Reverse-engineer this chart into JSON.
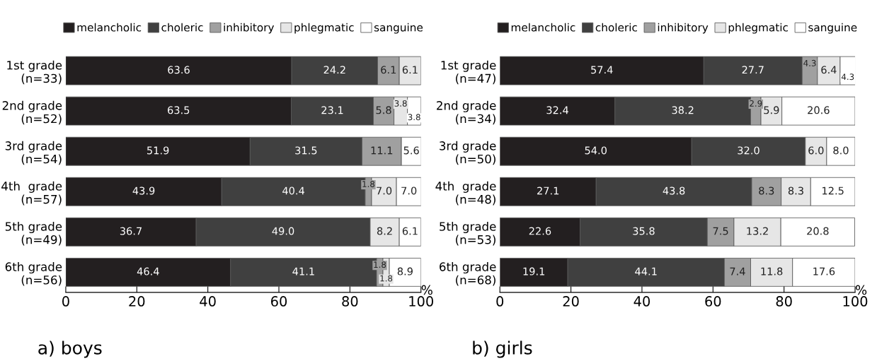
{
  "chart_data": [
    {
      "type": "bar",
      "title": "a) boys",
      "xlabel": "%",
      "orientation": "horizontal",
      "stacked": true,
      "legend": "top",
      "xlim": [
        0,
        100
      ],
      "xticks": [
        0,
        20,
        40,
        60,
        80,
        100
      ],
      "categories": [
        "1st grade\n(n=33)",
        "2nd grade\n(n=52)",
        "3rd grade\n(n=54)",
        "4th  grade\n(n=57)",
        "5th grade\n(n=49)",
        "6th grade\n(n=56)"
      ],
      "series": [
        {
          "name": "melancholic",
          "color": "#231f20",
          "values": [
            63.6,
            63.5,
            51.9,
            43.9,
            36.7,
            46.4
          ],
          "value_labels": [
            "63.6",
            "63.5",
            "51.9",
            "43.9",
            "36.7",
            "46.4"
          ]
        },
        {
          "name": "choleric",
          "color": "#404040",
          "values": [
            24.2,
            23.1,
            31.5,
            40.4,
            49.0,
            41.1
          ],
          "value_labels": [
            "24.2",
            "23.1",
            "31.5",
            "40.4",
            "49.0",
            "41.1"
          ]
        },
        {
          "name": "inhibitory",
          "color": "#a0a0a0",
          "values": [
            6.1,
            5.8,
            11.1,
            1.8,
            null,
            1.8
          ],
          "value_labels": [
            "6.1",
            "5.8",
            "11.1",
            "1.8",
            null,
            "1.8"
          ]
        },
        {
          "name": "phlegmatic",
          "color": "#e6e6e6",
          "values": [
            6.1,
            3.8,
            null,
            7.0,
            8.2,
            1.8
          ],
          "value_labels": [
            "6.1",
            "3.8",
            null,
            "7.0",
            "8.2",
            "1.8"
          ]
        },
        {
          "name": "sanguine",
          "color": "#ffffff",
          "values": [
            null,
            3.8,
            5.6,
            7.0,
            6.1,
            8.9
          ],
          "value_labels": [
            null,
            "3.8",
            "5.6",
            "7.0",
            "6.1",
            "8.9"
          ]
        }
      ]
    },
    {
      "type": "bar",
      "title": "b) girls",
      "xlabel": "%",
      "orientation": "horizontal",
      "stacked": true,
      "legend": "top",
      "xlim": [
        0,
        100
      ],
      "xticks": [
        0,
        20,
        40,
        60,
        80,
        100
      ],
      "categories": [
        "1st grade\n(n=47)",
        "2nd grade\n(n=34)",
        "3rd grade\n(n=50)",
        "4th  grade\n(n=48)",
        "5th grade\n(n=53)",
        "6th grade\n(n=68)"
      ],
      "series": [
        {
          "name": "melancholic",
          "color": "#231f20",
          "values": [
            57.4,
            32.4,
            54.0,
            27.1,
            22.6,
            19.1
          ],
          "value_labels": [
            "57.4",
            "32.4",
            "54.0",
            "27.1",
            "22.6",
            "19.1"
          ]
        },
        {
          "name": "choleric",
          "color": "#404040",
          "values": [
            27.7,
            38.2,
            32.0,
            43.8,
            35.8,
            44.1
          ],
          "value_labels": [
            "27.7",
            "38.2",
            "32.0",
            "43.8",
            "35.8",
            "44.1"
          ]
        },
        {
          "name": "inhibitory",
          "color": "#a0a0a0",
          "values": [
            4.3,
            2.9,
            null,
            8.3,
            7.5,
            7.4
          ],
          "value_labels": [
            "4.3",
            "2.9",
            null,
            "8.3",
            "7.5",
            "7.4"
          ]
        },
        {
          "name": "phlegmatic",
          "color": "#e6e6e6",
          "values": [
            6.4,
            5.9,
            6.0,
            8.3,
            13.2,
            11.8
          ],
          "value_labels": [
            "6.4",
            "5.9",
            "6.0",
            "8.3",
            "13.2",
            "11.8"
          ]
        },
        {
          "name": "sanguine",
          "color": "#ffffff",
          "values": [
            4.3,
            20.6,
            8.0,
            12.5,
            20.8,
            17.6
          ],
          "value_labels": [
            "4.3",
            "20.6",
            "8.0",
            "12.5",
            "20.8",
            "17.6"
          ]
        }
      ]
    }
  ]
}
